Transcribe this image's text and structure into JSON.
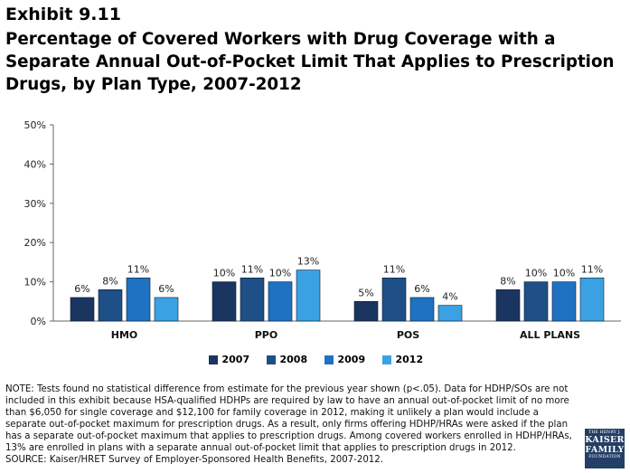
{
  "header": {
    "exhibit": "Exhibit 9.11",
    "title": "Percentage of Covered Workers with Drug Coverage with a Separate Annual Out-of-Pocket Limit That Applies to Prescription Drugs, by Plan Type, 2007-2012"
  },
  "chart_data": {
    "type": "bar",
    "categories": [
      "HMO",
      "PPO",
      "POS",
      "ALL PLANS"
    ],
    "series": [
      {
        "name": "2007",
        "values": [
          6,
          10,
          5,
          8
        ],
        "labels": [
          "6%",
          "10%",
          "5%",
          "8%"
        ],
        "color": "#1a3560"
      },
      {
        "name": "2008",
        "values": [
          8,
          11,
          11,
          10
        ],
        "labels": [
          "8%",
          "11%",
          "11%",
          "10%"
        ],
        "color": "#1e4f87"
      },
      {
        "name": "2009",
        "values": [
          11,
          10,
          6,
          10
        ],
        "labels": [
          "11%",
          "10%",
          "6%",
          "10%"
        ],
        "color": "#1f72c2"
      },
      {
        "name": "2012",
        "values": [
          6,
          13,
          4,
          11
        ],
        "labels": [
          "6%",
          "13%",
          "4%",
          "11%"
        ],
        "color": "#3aa2e2"
      }
    ],
    "ylim": [
      0,
      50
    ],
    "yticks": [
      "0%",
      "10%",
      "20%",
      "30%",
      "40%",
      "50%"
    ],
    "ytick_values": [
      0,
      10,
      20,
      30,
      40,
      50
    ],
    "grid": false,
    "legend": "bottom-center"
  },
  "footer": {
    "note": "NOTE: Tests found no statistical difference from estimate for the previous year shown (p<.05). Data for HDHP/SOs are not included in this exhibit because HSA-qualified HDHPs are required by law to have an annual out-of-pocket limit of no more than $6,050 for single coverage and $12,100 for family coverage in 2012, making it unlikely a plan would include a separate out-of-pocket maximum for prescription drugs.  As a result, only firms offering HDHP/HRAs were asked if the plan has a separate out-of-pocket maximum that applies to prescription drugs.  Among covered workers enrolled in HDHP/HRAs, 13% are enrolled in plans with a separate annual out-of-pocket limit that applies to prescription drugs in 2012.",
    "source": "SOURCE:  Kaiser/HRET Survey of Employer-Sponsored Health Benefits, 2007-2012."
  },
  "logo": {
    "line1": "THE HENRY J.",
    "line2": "KAISER",
    "line3": "FAMILY",
    "line4": "FOUNDATION"
  }
}
